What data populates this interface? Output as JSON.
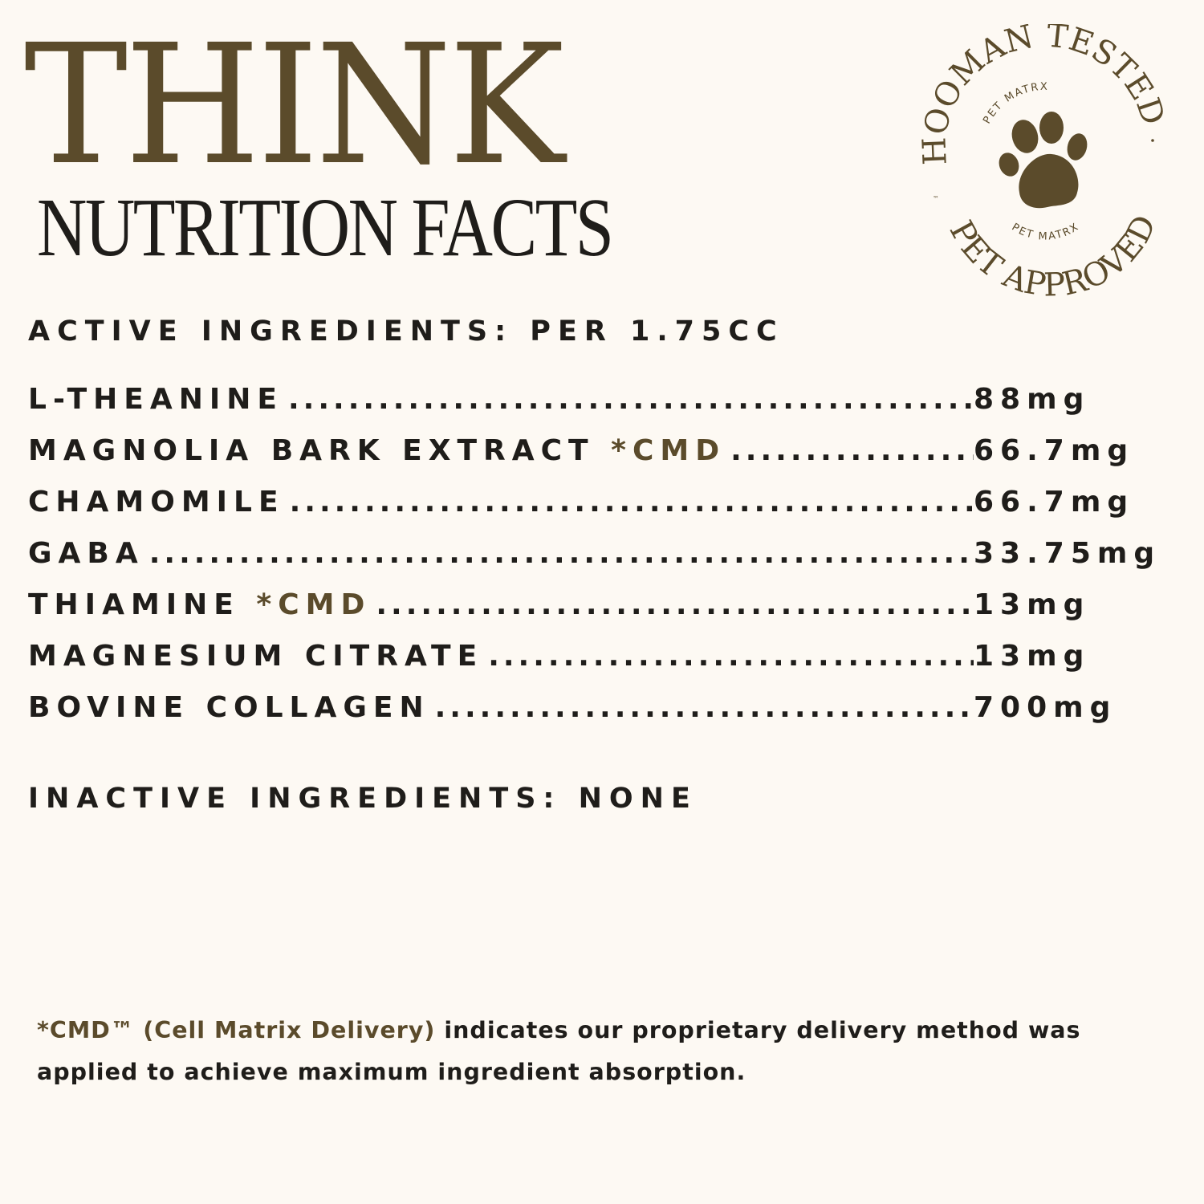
{
  "header": {
    "title": "THINK",
    "subtitle": "NUTRITION FACTS"
  },
  "badge": {
    "top_text": "HOOMAN TESTED",
    "bottom_text": "PET APPROVED",
    "inner_top": "PET MATRX",
    "inner_bottom": "PET MATRX",
    "trademark": "™",
    "icon": "paw-print-icon"
  },
  "active_ingredients": {
    "heading": "ACTIVE INGREDIENTS: PER 1.75CC",
    "items": [
      {
        "name": "L-THEANINE",
        "note": "",
        "value": "88mg"
      },
      {
        "name": "MAGNOLIA BARK EXTRACT ",
        "note": "*CMD",
        "value": "66.7mg"
      },
      {
        "name": "CHAMOMILE",
        "note": "",
        "value": "66.7mg"
      },
      {
        "name": "GABA",
        "note": "",
        "value": "33.75mg"
      },
      {
        "name": "THIAMINE ",
        "note": "*CMD",
        "value": "13mg"
      },
      {
        "name": "MAGNESIUM CITRATE",
        "note": "",
        "value": "13mg"
      },
      {
        "name": "BOVINE COLLAGEN ",
        "note": "",
        "value": "700mg"
      }
    ]
  },
  "inactive_ingredients": {
    "heading": "INACTIVE INGREDIENTS: NONE"
  },
  "footnote": {
    "highlight": "*CMD™ (Cell Matrix Delivery)",
    "text": " indicates our proprietary delivery method was applied to achieve maximum ingredient absorption."
  },
  "colors": {
    "accent": "#5b4b2b",
    "text": "#1f1d1a",
    "background": "#fdf9f3"
  }
}
